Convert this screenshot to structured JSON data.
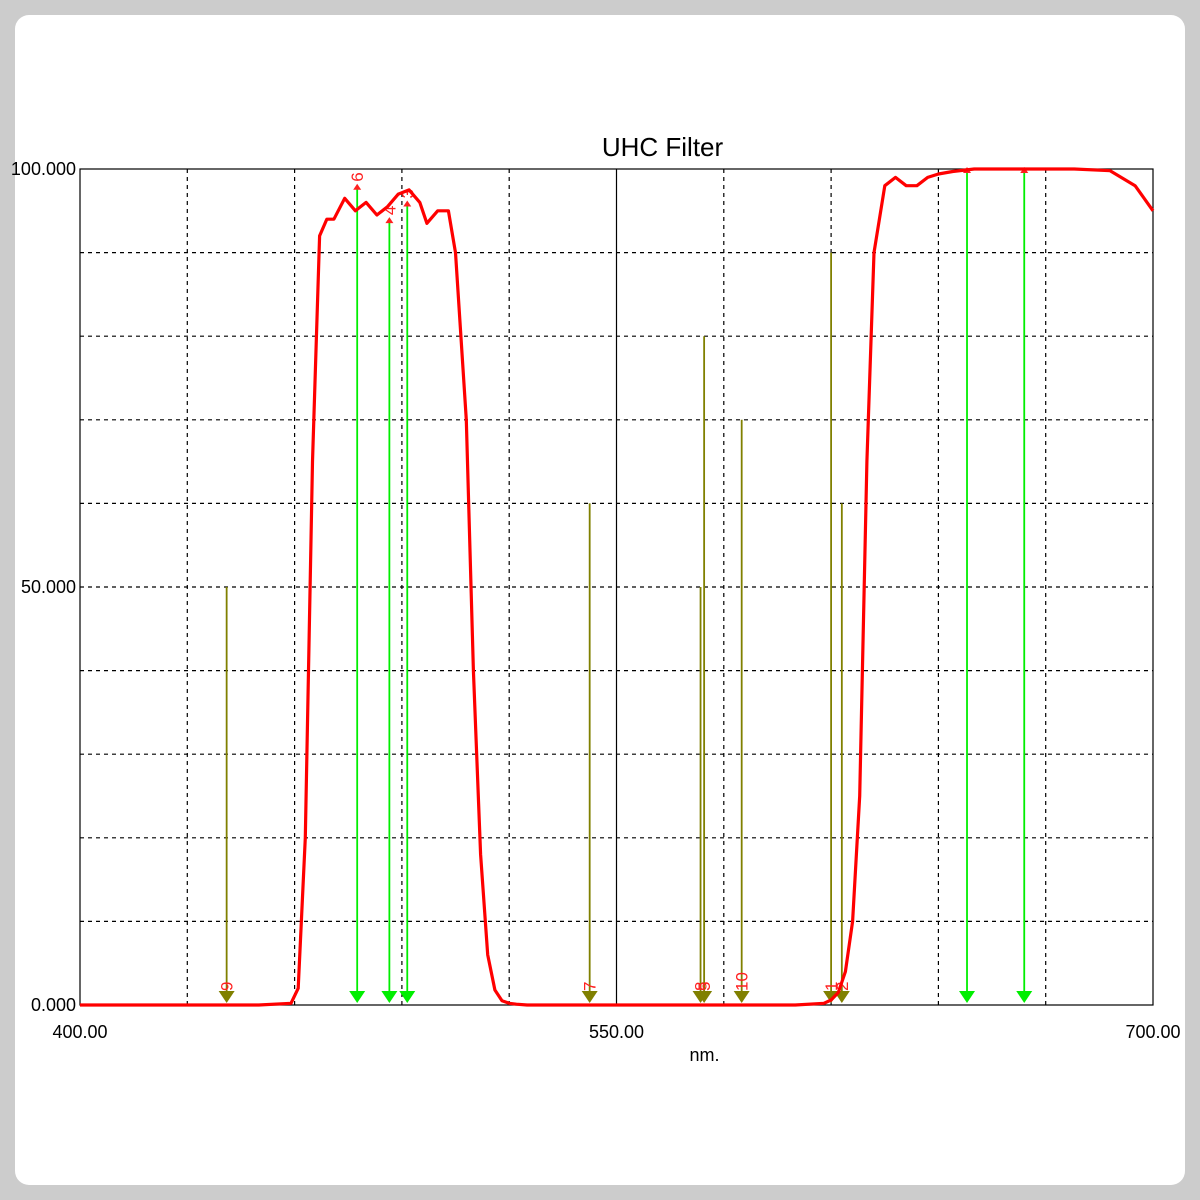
{
  "chart_data": {
    "type": "line",
    "title": "UHC Filter",
    "xlabel": "nm.",
    "ylabel": "",
    "xlim": [
      400,
      700
    ],
    "ylim": [
      0,
      100
    ],
    "x_tick_labels": [
      "400.00",
      "550.00",
      "700.00"
    ],
    "y_tick_labels": [
      "0.000",
      "50.000",
      "100.000"
    ],
    "grid": true,
    "series": [
      {
        "color": "#ff0000",
        "x": [
          400,
          450,
          459,
          461,
          463,
          465,
          467,
          469,
          471,
          474,
          477,
          480,
          483,
          486,
          489,
          492,
          495,
          497,
          500,
          503,
          505,
          508,
          510,
          512,
          514,
          516,
          518,
          520,
          522,
          525,
          530,
          550,
          580,
          600,
          608,
          610,
          612,
          614,
          616,
          618,
          620,
          622,
          625,
          628,
          631,
          634,
          637,
          640,
          644,
          650,
          658,
          668,
          678,
          688,
          695,
          700
        ],
        "y": [
          0,
          0,
          0.2,
          2,
          20,
          65,
          92,
          94,
          94,
          96.5,
          95,
          96,
          94.5,
          95.5,
          97,
          97.5,
          96,
          93.5,
          95,
          95,
          90,
          70,
          40,
          18,
          6,
          1.8,
          0.5,
          0.2,
          0.1,
          0,
          0,
          0,
          0,
          0,
          0.2,
          0.6,
          1.5,
          4,
          10,
          25,
          65,
          90,
          98,
          99,
          98,
          98,
          99,
          99.4,
          99.7,
          100,
          100,
          100,
          100,
          99.8,
          98,
          95
        ]
      }
    ],
    "markers": [
      {
        "label": "9",
        "x": 441,
        "height": 50,
        "color": "#808000"
      },
      {
        "label": "6",
        "x": 477.5,
        "height": 98,
        "color": "#00ee00"
      },
      {
        "label": "4",
        "x": 486.5,
        "height": 94,
        "color": "#00ee00"
      },
      {
        "label": "3",
        "x": 491.5,
        "height": 96,
        "color": "#00ee00"
      },
      {
        "label": "7",
        "x": 542.5,
        "height": 60,
        "color": "#808000"
      },
      {
        "label": "8",
        "x": 573.5,
        "height": 50,
        "color": "#808000"
      },
      {
        "label": "5",
        "x": 574.5,
        "height": 80,
        "color": "#808000"
      },
      {
        "label": "10",
        "x": 585,
        "height": 70,
        "color": "#808000"
      },
      {
        "label": "1",
        "x": 610,
        "height": 90,
        "color": "#808000"
      },
      {
        "label": "2",
        "x": 613,
        "height": 60,
        "color": "#808000"
      },
      {
        "label": "",
        "x": 648,
        "height": 100,
        "color": "#00ee00"
      },
      {
        "label": "",
        "x": 664,
        "height": 100,
        "color": "#00ee00"
      }
    ]
  }
}
